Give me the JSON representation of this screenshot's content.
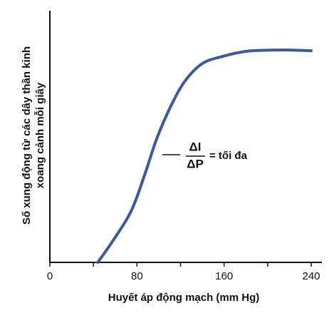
{
  "chart_data": {
    "type": "line",
    "x_label": "Huyết áp động mạch (mm Hg)",
    "y_label": [
      "Số xung động từ các dây thần kinh",
      "xoang cảnh mỗi giây"
    ],
    "x": [
      44,
      59,
      75,
      88,
      98,
      111,
      124,
      140,
      160,
      183,
      216,
      240
    ],
    "series": [
      {
        "color": "#3d58a3",
        "values": [
          0,
          9.3,
          20.7,
          36,
          49,
          62,
          72,
          79,
          82,
          84,
          84.4,
          84.1
        ]
      }
    ],
    "xlim": [
      0,
      240
    ],
    "ylim": [
      0,
      100
    ],
    "xticks": [
      0,
      80,
      160,
      240
    ],
    "xminorticks": [
      40,
      120,
      200
    ],
    "annotation": {
      "numerator": "ΔI",
      "denominator": "ΔP",
      "text": "= tối đa"
    }
  }
}
